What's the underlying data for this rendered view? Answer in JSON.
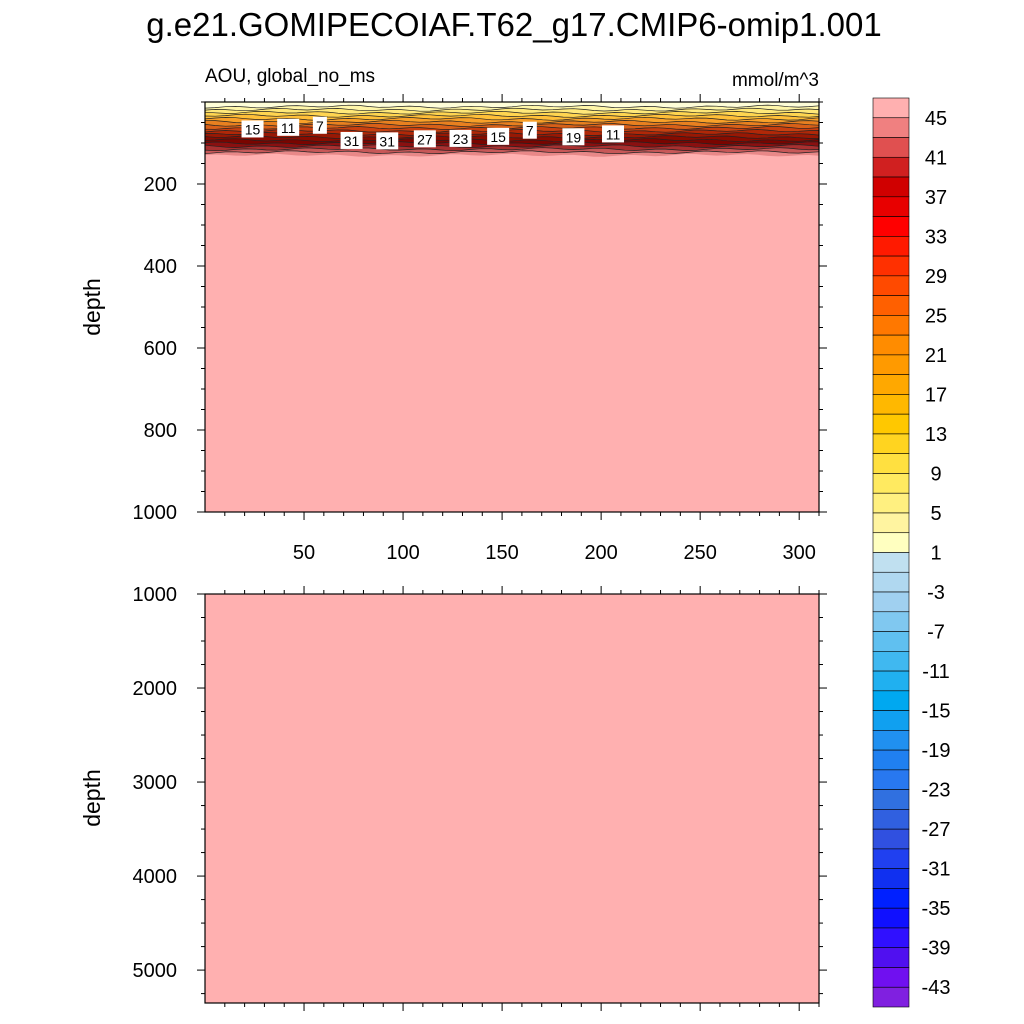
{
  "title": "g.e21.GOMIPECOIAF.T62_g17.CMIP6-omip1.001",
  "colors": {
    "fill_above_max": "#ffb0b0",
    "frame": "#000000",
    "contour_line": "#222222"
  },
  "chart_data": [
    {
      "type": "heatmap",
      "panel": "upper",
      "subtitle_left": "AOU, global_no_ms",
      "subtitle_right": "mmol/m^3",
      "ylabel": "depth",
      "xlim": [
        0,
        310
      ],
      "ylim": [
        1000,
        0
      ],
      "y_reversed": true,
      "x_ticks": [
        50,
        100,
        150,
        200,
        250,
        300
      ],
      "x_tick_labels": [
        "50",
        "100",
        "150",
        "200",
        "250",
        "300"
      ],
      "y_ticks": [
        200,
        400,
        600,
        800,
        1000
      ],
      "y_tick_labels": [
        "200",
        "400",
        "600",
        "800",
        "1000"
      ],
      "field": "AOU increases from about 1 near the surface to above 45 below about 130 m",
      "contour_labels": [
        {
          "text": "15",
          "x": 24,
          "depth": 67
        },
        {
          "text": "11",
          "x": 42,
          "depth": 63
        },
        {
          "text": "7",
          "x": 58,
          "depth": 58
        },
        {
          "text": "31",
          "x": 74,
          "depth": 95
        },
        {
          "text": "31",
          "x": 92,
          "depth": 96
        },
        {
          "text": "27",
          "x": 111,
          "depth": 91
        },
        {
          "text": "23",
          "x": 129,
          "depth": 90
        },
        {
          "text": "15",
          "x": 148,
          "depth": 85
        },
        {
          "text": "7",
          "x": 164,
          "depth": 70
        },
        {
          "text": "19",
          "x": 186,
          "depth": 86
        },
        {
          "text": "11",
          "x": 206,
          "depth": 79
        }
      ]
    },
    {
      "type": "heatmap",
      "panel": "lower",
      "ylabel": "depth",
      "xlim": [
        0,
        310
      ],
      "ylim": [
        5350,
        1000
      ],
      "y_reversed": true,
      "y_ticks": [
        1000,
        2000,
        3000,
        4000,
        5000
      ],
      "y_tick_labels": [
        "1000",
        "2000",
        "3000",
        "4000",
        "5000"
      ],
      "field": "AOU above 45 everywhere"
    }
  ],
  "colorbar": {
    "labels": [
      "45",
      "41",
      "37",
      "33",
      "29",
      "25",
      "21",
      "17",
      "13",
      "9",
      "5",
      "1",
      "-3",
      "-7",
      "-11",
      "-15",
      "-19",
      "-23",
      "-27",
      "-31",
      "-35",
      "-39",
      "-43"
    ],
    "colors": [
      "#ffb0b0",
      "#f08080",
      "#e05050",
      "#d02020",
      "#d00000",
      "#e80000",
      "#ff0000",
      "#ff1a00",
      "#ff3000",
      "#ff4a00",
      "#ff6000",
      "#ff7800",
      "#ff8c00",
      "#ff9a00",
      "#ffa800",
      "#ffb800",
      "#ffc800",
      "#ffd420",
      "#ffe040",
      "#ffea60",
      "#fff080",
      "#fff4a0",
      "#ffffc0",
      "#c0e0f0",
      "#b0d8f0",
      "#a0d0f0",
      "#80c8f0",
      "#60c0f0",
      "#40b8f0",
      "#20b0f0",
      "#00a8f0",
      "#10a0f0",
      "#2090f0",
      "#2080f0",
      "#2878f0",
      "#3070e0",
      "#3060e0",
      "#3050e0",
      "#2040f0",
      "#1030f0",
      "#0020ff",
      "#1010ff",
      "#3010ff",
      "#5010f0",
      "#7010f0",
      "#8020e0"
    ]
  }
}
